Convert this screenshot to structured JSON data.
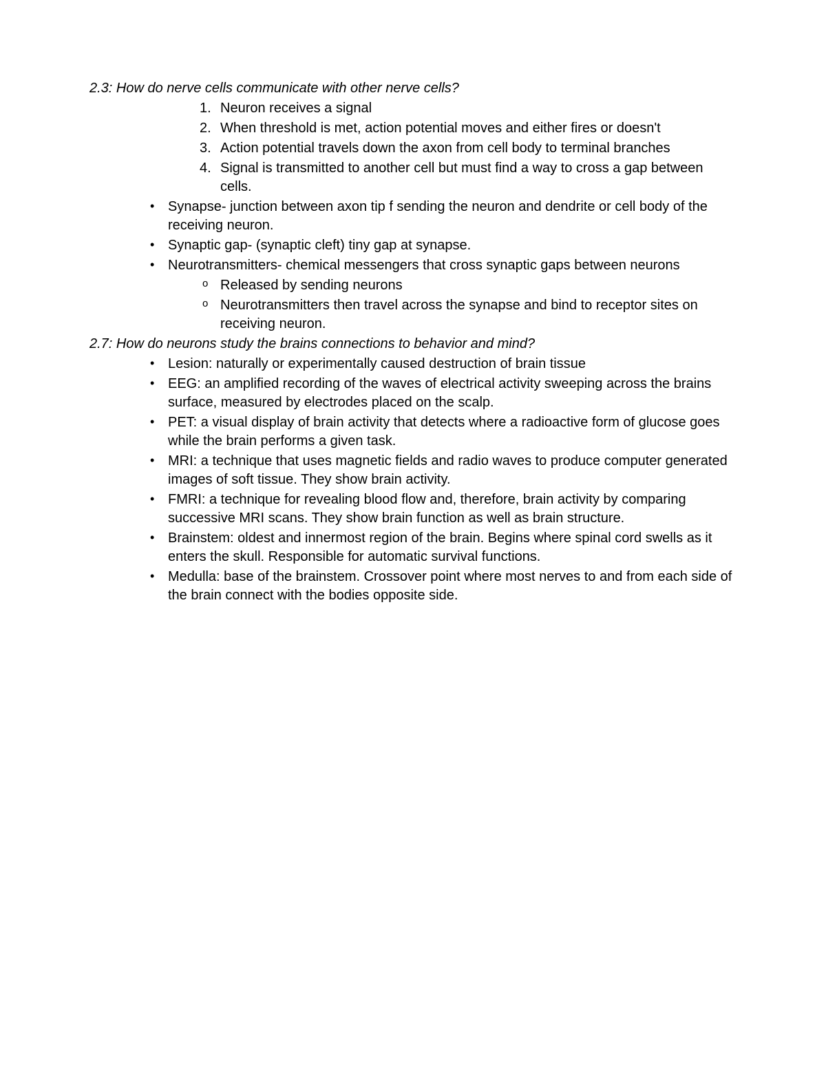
{
  "section_2_3": {
    "heading": "2.3: How do nerve cells communicate with other nerve cells?",
    "numbered": [
      "Neuron receives a signal",
      "When threshold is met, action potential moves and either fires or doesn't",
      "Action potential travels down the axon from cell body to terminal branches",
      "Signal is transmitted to another cell but must find a way to cross a gap between cells."
    ],
    "bullets": [
      "Synapse- junction between axon tip f sending the neuron and dendrite or cell body of the receiving neuron.",
      "Synaptic gap- (synaptic cleft) tiny gap at synapse.",
      "Neurotransmitters- chemical messengers that cross synaptic gaps between neurons"
    ],
    "sub_bullets": [
      "Released by sending neurons",
      "Neurotransmitters then travel across the synapse and bind to receptor sites on receiving neuron."
    ]
  },
  "section_2_7": {
    "heading": "2.7: How do neurons study the brains connections to behavior and mind?",
    "bullets": [
      "Lesion: naturally or experimentally caused destruction of brain tissue",
      "EEG: an amplified recording of the waves of electrical activity sweeping across the brains surface, measured by electrodes placed on the scalp.",
      "PET: a visual display of brain activity that detects where a radioactive form of glucose goes while the brain performs a given task.",
      "MRI: a technique that uses magnetic fields and radio waves to produce computer generated images of soft tissue. They show brain activity.",
      "FMRI: a technique for revealing blood flow and, therefore, brain activity by comparing successive MRI scans. They show brain function as well as brain structure.",
      "Brainstem: oldest and innermost region of the brain. Begins where spinal cord swells as it enters the skull. Responsible for automatic survival functions.",
      "Medulla: base of the brainstem. Crossover point where most nerves to and from each side of the brain connect with the bodies opposite side."
    ]
  }
}
